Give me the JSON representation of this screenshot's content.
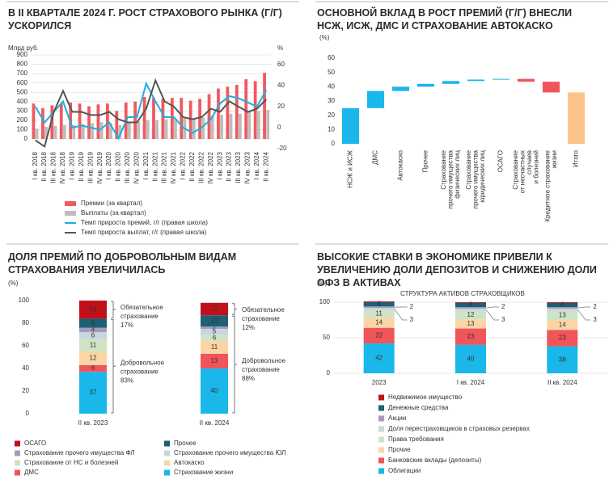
{
  "chart_data": [
    {
      "type": "combo",
      "title": "В II КВАРТАЛЕ 2024 Г. РОСТ СТРАХОВОГО РЫНКА (Г/Г) УСКОРИЛСЯ",
      "y_label": "Млрд руб.",
      "y2_label": "%",
      "categories": [
        "I кв. 2018",
        "II кв. 2018",
        "III кв. 2018",
        "IV кв. 2018",
        "I кв. 2019",
        "II кв. 2019",
        "III кв. 2019",
        "IV кв. 2019",
        "I кв. 2020",
        "II кв. 2020",
        "III кв. 2020",
        "IV кв. 2020",
        "I кв. 2021",
        "II кв. 2021",
        "III кв. 2021",
        "IV кв. 2021",
        "I кв. 2022",
        "II кв. 2022",
        "III кв. 2022",
        "IV кв. 2022",
        "I кв. 2023",
        "II кв. 2023",
        "III кв. 2023",
        "IV кв. 2023",
        "I кв. 2024",
        "II кв. 2024"
      ],
      "series": [
        {
          "name": "Премии (за квартал)",
          "type": "bar",
          "color": "#ef5a5f",
          "values": [
            380,
            330,
            360,
            380,
            390,
            380,
            350,
            370,
            380,
            300,
            390,
            400,
            450,
            440,
            430,
            440,
            440,
            410,
            430,
            480,
            540,
            560,
            580,
            640,
            620,
            710
          ]
        },
        {
          "name": "Выплаты (за квартал)",
          "type": "bar",
          "color": "#bdbdbd",
          "values": [
            110,
            130,
            140,
            150,
            150,
            160,
            170,
            180,
            170,
            150,
            180,
            190,
            200,
            200,
            210,
            220,
            220,
            220,
            230,
            250,
            260,
            270,
            270,
            290,
            300,
            310
          ]
        },
        {
          "name": "Темп прироста премий, г/г (правая школа)",
          "type": "line",
          "axis": "y2",
          "color": "#1ab0e0",
          "values": [
            20,
            5,
            15,
            25,
            0,
            2,
            0,
            -2,
            5,
            -10,
            10,
            10,
            42,
            25,
            10,
            10,
            0,
            -5,
            0,
            8,
            23,
            30,
            28,
            24,
            20,
            36
          ]
        },
        {
          "name": "Темп прироста выплат, г/г (правая школа)",
          "type": "line",
          "axis": "y2",
          "color": "#555555",
          "values": [
            -12,
            -18,
            15,
            35,
            15,
            15,
            12,
            12,
            15,
            8,
            5,
            5,
            18,
            45,
            25,
            20,
            10,
            8,
            10,
            18,
            15,
            25,
            20,
            15,
            18,
            27
          ]
        }
      ],
      "ylim": [
        0,
        900
      ],
      "yticks": [
        0,
        100,
        200,
        300,
        400,
        500,
        600,
        700,
        800,
        900
      ],
      "y2lim": [
        -20,
        60
      ],
      "y2ticks": [
        -20,
        0,
        20,
        40,
        60
      ],
      "grid": true
    },
    {
      "type": "waterfall",
      "title": "ОСНОВНОЙ ВКЛАД В РОСТ ПРЕМИЙ (Г/Г) ВНЕСЛИ НСЖ, ИСЖ, ДМС И СТРАХОВАНИЕ АВТОКАСКО",
      "y_label": "(%)",
      "categories": [
        [
          "НСЖ и ИСЖ"
        ],
        [
          "ДМС"
        ],
        [
          "Автокаско"
        ],
        [
          "Прочее"
        ],
        [
          "Страхование",
          "прочего имущества",
          "физических лиц"
        ],
        [
          "Страхование",
          "прочего имущества",
          "юридических лиц"
        ],
        [
          "ОСАГО"
        ],
        [
          "Страхование",
          "от несчастных",
          "случаев",
          "и болезней"
        ],
        [
          "Кредитное страхование",
          "жизни"
        ],
        [
          "Итого"
        ]
      ],
      "values": [
        25,
        12,
        3,
        2,
        2,
        1,
        0.5,
        -2,
        -7.5,
        36
      ],
      "colors": {
        "increase": "#1ab7ea",
        "decrease": "#f0555a",
        "total": "#fcc48a"
      },
      "ylim": [
        0,
        60
      ],
      "yticks": [
        0,
        10,
        20,
        30,
        40,
        50,
        60
      ],
      "grid": false
    },
    {
      "type": "stacked_bar",
      "title": "ДОЛЯ ПРЕМИЙ ПО ДОБРОВОЛЬНЫМ ВИДАМ СТРАХОВАНИЯ УВЕЛИЧИЛАСЬ",
      "y_label": "(%)",
      "categories": [
        "II кв. 2023",
        "II кв. 2024"
      ],
      "series": [
        {
          "name": "Страхование жизни",
          "color": "#1ab7ea",
          "values": [
            37,
            40
          ]
        },
        {
          "name": "ДМС",
          "color": "#f0555a",
          "values": [
            6,
            13
          ]
        },
        {
          "name": "Автокаско",
          "color": "#fbd5a5",
          "values": [
            12,
            11
          ]
        },
        {
          "name": "Страхование от НС и болезней",
          "color": "#cfe3c7",
          "values": [
            11,
            6
          ]
        },
        {
          "name": "Страхование прочего имущества ЮЛ",
          "color": "#c9d6e0",
          "values": [
            6,
            5
          ]
        },
        {
          "name": "Страхование прочего имущества ФЛ",
          "color": "#a69bbf",
          "values": [
            4,
            2
          ]
        },
        {
          "name": "Прочее",
          "color": "#1d5f73",
          "values": [
            8,
            10
          ]
        },
        {
          "name": "ОСАГО",
          "color": "#c0101a",
          "values": [
            16,
            11
          ]
        }
      ],
      "annotations": [
        [
          [
            "Обязательное",
            "страхование",
            "17%"
          ],
          [
            "Добровольное",
            "страхование",
            "83%"
          ]
        ],
        [
          [
            "Обязательное",
            "страхование",
            "12%"
          ],
          [
            "Добровольное",
            "страхование",
            "88%"
          ]
        ]
      ],
      "legend_columns": 2,
      "ylim": [
        0,
        100
      ],
      "yticks": [
        0,
        20,
        40,
        60,
        80,
        100
      ],
      "grid": false
    },
    {
      "type": "stacked_bar",
      "title": "ВЫСОКИЕ СТАВКИ В ЭКОНОМИКЕ ПРИВЕЛИ К УВЕЛИЧЕНИЮ ДОЛИ ДЕПОЗИТОВ И СНИЖЕНИЮ ДОЛИ ОФЗ В АКТИВАХ",
      "y_label": "(%)",
      "subtitle": "СТРУКТУРА АКТИВОВ СТРАХОВЩИКОВ",
      "categories": [
        "2023",
        "I кв. 2024",
        "II кв. 2024"
      ],
      "series": [
        {
          "name": "Облигации",
          "color": "#1ab7ea",
          "values": [
            42,
            40,
            38
          ]
        },
        {
          "name": "Банковские вклады (депозиты)",
          "color": "#f0555a",
          "values": [
            22,
            23,
            23
          ]
        },
        {
          "name": "Прочие",
          "color": "#fbd5a5",
          "values": [
            14,
            13,
            14
          ]
        },
        {
          "name": "Права требования",
          "color": "#cfe3c7",
          "values": [
            11,
            12,
            13
          ]
        },
        {
          "name": "Доля перестраховщиков в страховых резервах",
          "color": "#c9d6e0",
          "values": [
            3,
            3,
            3
          ]
        },
        {
          "name": "Акции",
          "color": "#a69bbf",
          "values": [
            2,
            2,
            2
          ]
        },
        {
          "name": "Денежные средства",
          "color": "#1d5f73",
          "values": [
            6,
            6,
            6
          ]
        },
        {
          "name": "Недвижимое имущество",
          "color": "#c0101a",
          "values": [
            1,
            1,
            1
          ]
        }
      ],
      "legend_columns": 1,
      "ylim": [
        0,
        100
      ],
      "yticks": [
        0,
        50,
        100
      ],
      "grid": true
    }
  ]
}
